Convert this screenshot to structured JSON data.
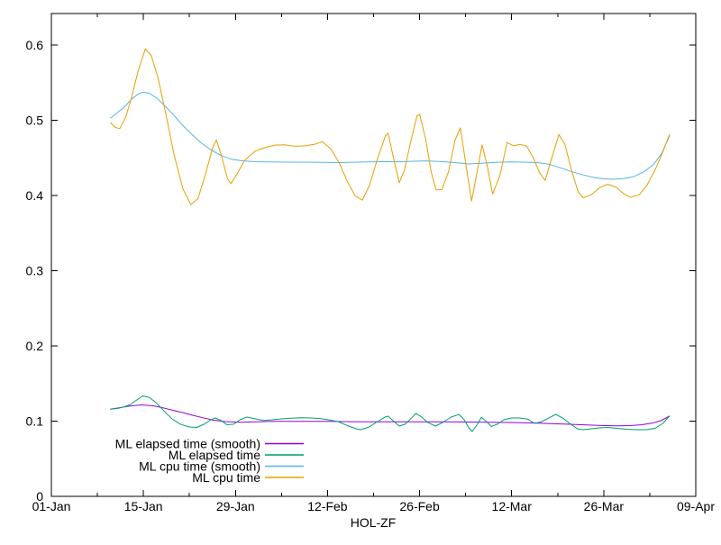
{
  "chart_data": {
    "type": "line",
    "title": "",
    "xlabel": "HOL-ZF",
    "ylabel": "",
    "x_unit": "days-since-01-Jan",
    "xlim": [
      0,
      98
    ],
    "ylim": [
      0,
      0.642
    ],
    "grid": false,
    "legend_position": "bottom-left-inside",
    "border_color": "#000000",
    "background_color": "#ffffff",
    "y_ticks": [
      {
        "v": 0,
        "label": "0"
      },
      {
        "v": 0.1,
        "label": "0.1"
      },
      {
        "v": 0.2,
        "label": "0.2"
      },
      {
        "v": 0.3,
        "label": "0.3"
      },
      {
        "v": 0.4,
        "label": "0.4"
      },
      {
        "v": 0.5,
        "label": "0.5"
      },
      {
        "v": 0.6,
        "label": "0.6"
      }
    ],
    "x_major_ticks": [
      {
        "day": 0,
        "label": "01-Jan"
      },
      {
        "day": 14,
        "label": "15-Jan"
      },
      {
        "day": 28,
        "label": "29-Jan"
      },
      {
        "day": 42,
        "label": "12-Feb"
      },
      {
        "day": 56,
        "label": "26-Feb"
      },
      {
        "day": 70,
        "label": "12-Mar"
      },
      {
        "day": 84,
        "label": "26-Mar"
      },
      {
        "day": 98,
        "label": "09-Apr"
      }
    ],
    "x_minor_ticks": [
      7,
      21,
      35,
      49,
      63,
      77,
      91
    ],
    "series": [
      {
        "name": "ML elapsed time (smooth)",
        "id": "ml-elapsed-time-smooth",
        "color": "#9400D3",
        "points": [
          [
            9,
            0.116
          ],
          [
            10.5,
            0.118
          ],
          [
            12,
            0.1202
          ],
          [
            13.7,
            0.1216
          ],
          [
            15.5,
            0.1204
          ],
          [
            17,
            0.1176
          ],
          [
            18.5,
            0.1144
          ],
          [
            20,
            0.1114
          ],
          [
            21.5,
            0.1078
          ],
          [
            23,
            0.1046
          ],
          [
            24.7,
            0.1012
          ],
          [
            26.5,
            0.0994
          ],
          [
            28.8,
            0.0984
          ],
          [
            31,
            0.099
          ],
          [
            34,
            0.0996
          ],
          [
            38,
            0.0998
          ],
          [
            42,
            0.0996
          ],
          [
            46,
            0.0993
          ],
          [
            50,
            0.0992
          ],
          [
            54,
            0.0992
          ],
          [
            58,
            0.0991
          ],
          [
            62,
            0.0989
          ],
          [
            66,
            0.0986
          ],
          [
            70,
            0.0982
          ],
          [
            73,
            0.0976
          ],
          [
            76,
            0.0968
          ],
          [
            79,
            0.0958
          ],
          [
            81.5,
            0.0949
          ],
          [
            84,
            0.094
          ],
          [
            86,
            0.0937
          ],
          [
            88,
            0.094
          ],
          [
            89.8,
            0.0952
          ],
          [
            91.3,
            0.0972
          ],
          [
            92.7,
            0.1006
          ],
          [
            94,
            0.1066
          ]
        ]
      },
      {
        "name": "ML elapsed time",
        "id": "ml-elapsed-time",
        "color": "#009E73",
        "points": [
          [
            9,
            0.1162
          ],
          [
            10,
            0.1168
          ],
          [
            11,
            0.1188
          ],
          [
            12,
            0.1222
          ],
          [
            13,
            0.1282
          ],
          [
            13.9,
            0.1336
          ],
          [
            14.9,
            0.1316
          ],
          [
            16,
            0.124
          ],
          [
            17.2,
            0.1128
          ],
          [
            18.4,
            0.1026
          ],
          [
            19.7,
            0.0956
          ],
          [
            21,
            0.0922
          ],
          [
            22.1,
            0.0916
          ],
          [
            23.2,
            0.0958
          ],
          [
            24.3,
            0.102
          ],
          [
            24.9,
            0.1042
          ],
          [
            25.8,
            0.101
          ],
          [
            26.7,
            0.0952
          ],
          [
            27.7,
            0.096
          ],
          [
            28.7,
            0.1018
          ],
          [
            29.7,
            0.1054
          ],
          [
            31,
            0.103
          ],
          [
            32.3,
            0.1008
          ],
          [
            33.6,
            0.1018
          ],
          [
            35,
            0.103
          ],
          [
            36.5,
            0.104
          ],
          [
            38,
            0.1044
          ],
          [
            39.5,
            0.1042
          ],
          [
            41,
            0.1034
          ],
          [
            42.3,
            0.1016
          ],
          [
            43.6,
            0.0994
          ],
          [
            45.2,
            0.0934
          ],
          [
            46.4,
            0.0898
          ],
          [
            47,
            0.0886
          ],
          [
            48.2,
            0.0918
          ],
          [
            49.6,
            0.0994
          ],
          [
            50.8,
            0.1056
          ],
          [
            51.2,
            0.1066
          ],
          [
            52,
            0.1004
          ],
          [
            52.9,
            0.0934
          ],
          [
            53.8,
            0.096
          ],
          [
            54.8,
            0.1044
          ],
          [
            55.4,
            0.1102
          ],
          [
            56.2,
            0.1064
          ],
          [
            57.3,
            0.098
          ],
          [
            58.4,
            0.0934
          ],
          [
            59.5,
            0.0982
          ],
          [
            60.8,
            0.1054
          ],
          [
            62,
            0.109
          ],
          [
            62.8,
            0.1016
          ],
          [
            63.5,
            0.091
          ],
          [
            64,
            0.0862
          ],
          [
            64.7,
            0.0946
          ],
          [
            65.4,
            0.105
          ],
          [
            66.2,
            0.0992
          ],
          [
            66.9,
            0.093
          ],
          [
            67.8,
            0.0958
          ],
          [
            68.8,
            0.1018
          ],
          [
            70,
            0.1042
          ],
          [
            71.2,
            0.1042
          ],
          [
            72.4,
            0.1028
          ],
          [
            73.5,
            0.097
          ],
          [
            74.6,
            0.0994
          ],
          [
            75.7,
            0.1044
          ],
          [
            76.7,
            0.109
          ],
          [
            77.8,
            0.104
          ],
          [
            79,
            0.0958
          ],
          [
            80,
            0.0898
          ],
          [
            80.9,
            0.0886
          ],
          [
            82.1,
            0.0898
          ],
          [
            83.3,
            0.091
          ],
          [
            84.6,
            0.0916
          ],
          [
            86,
            0.0904
          ],
          [
            87.5,
            0.0892
          ],
          [
            89,
            0.0886
          ],
          [
            90.5,
            0.0886
          ],
          [
            91.8,
            0.0904
          ],
          [
            93,
            0.097
          ],
          [
            94,
            0.1066
          ]
        ]
      },
      {
        "name": "ML cpu time (smooth)",
        "id": "ml-cpu-time-smooth",
        "color": "#56B4E9",
        "points": [
          [
            9,
            0.503
          ],
          [
            9.9,
            0.509
          ],
          [
            11,
            0.517
          ],
          [
            12.2,
            0.528
          ],
          [
            13.2,
            0.535
          ],
          [
            13.9,
            0.5375
          ],
          [
            14.9,
            0.536
          ],
          [
            16.1,
            0.529
          ],
          [
            17.4,
            0.518
          ],
          [
            18.7,
            0.506
          ],
          [
            20,
            0.493
          ],
          [
            21.4,
            0.481
          ],
          [
            22.9,
            0.469
          ],
          [
            24.4,
            0.46
          ],
          [
            25.9,
            0.453
          ],
          [
            27.4,
            0.4482
          ],
          [
            29,
            0.4462
          ],
          [
            31,
            0.445
          ],
          [
            33,
            0.4446
          ],
          [
            36,
            0.4444
          ],
          [
            40,
            0.4442
          ],
          [
            44,
            0.4438
          ],
          [
            48,
            0.4446
          ],
          [
            51,
            0.4451
          ],
          [
            53,
            0.4448
          ],
          [
            55,
            0.4456
          ],
          [
            57,
            0.446
          ],
          [
            59,
            0.4452
          ],
          [
            61,
            0.444
          ],
          [
            63.5,
            0.442
          ],
          [
            66,
            0.4432
          ],
          [
            68,
            0.4442
          ],
          [
            70,
            0.4446
          ],
          [
            72,
            0.4444
          ],
          [
            74,
            0.4438
          ],
          [
            75.5,
            0.4418
          ],
          [
            77.2,
            0.4376
          ],
          [
            79,
            0.432
          ],
          [
            80.9,
            0.4274
          ],
          [
            82.5,
            0.424
          ],
          [
            84,
            0.4222
          ],
          [
            85.5,
            0.4216
          ],
          [
            87,
            0.4224
          ],
          [
            88.5,
            0.425
          ],
          [
            90,
            0.431
          ],
          [
            91.5,
            0.4405
          ],
          [
            92.8,
            0.4555
          ],
          [
            94,
            0.479
          ]
        ]
      },
      {
        "name": "ML cpu time",
        "id": "ml-cpu-time",
        "color": "#E69F00",
        "points": [
          [
            9,
            0.497
          ],
          [
            9.7,
            0.4905
          ],
          [
            10.4,
            0.489
          ],
          [
            11.3,
            0.504
          ],
          [
            12.2,
            0.53
          ],
          [
            13.2,
            0.566
          ],
          [
            14.3,
            0.595
          ],
          [
            15.2,
            0.586
          ],
          [
            16.2,
            0.557
          ],
          [
            17.4,
            0.509
          ],
          [
            18.7,
            0.453
          ],
          [
            20,
            0.409
          ],
          [
            21.2,
            0.388
          ],
          [
            22.3,
            0.396
          ],
          [
            23.4,
            0.427
          ],
          [
            24.5,
            0.463
          ],
          [
            25.1,
            0.474
          ],
          [
            25.9,
            0.452
          ],
          [
            26.8,
            0.422
          ],
          [
            27.3,
            0.416
          ],
          [
            28.2,
            0.428
          ],
          [
            29.4,
            0.447
          ],
          [
            31,
            0.459
          ],
          [
            32.5,
            0.464
          ],
          [
            34,
            0.467
          ],
          [
            35.5,
            0.4675
          ],
          [
            37,
            0.4655
          ],
          [
            38.5,
            0.466
          ],
          [
            40,
            0.468
          ],
          [
            41.2,
            0.4715
          ],
          [
            42.5,
            0.462
          ],
          [
            43.8,
            0.443
          ],
          [
            45,
            0.419
          ],
          [
            46.2,
            0.3995
          ],
          [
            47.3,
            0.394
          ],
          [
            48.4,
            0.414
          ],
          [
            49.6,
            0.449
          ],
          [
            50.8,
            0.479
          ],
          [
            51.2,
            0.483
          ],
          [
            52,
            0.451
          ],
          [
            52.9,
            0.417
          ],
          [
            53.7,
            0.434
          ],
          [
            54.6,
            0.47
          ],
          [
            55.6,
            0.506
          ],
          [
            56,
            0.508
          ],
          [
            56.9,
            0.476
          ],
          [
            57.8,
            0.43
          ],
          [
            58.5,
            0.4075
          ],
          [
            59.4,
            0.408
          ],
          [
            60.4,
            0.432
          ],
          [
            61.4,
            0.474
          ],
          [
            62.2,
            0.49
          ],
          [
            63,
            0.444
          ],
          [
            63.9,
            0.3925
          ],
          [
            64.7,
            0.429
          ],
          [
            65.5,
            0.4675
          ],
          [
            66.3,
            0.439
          ],
          [
            67.1,
            0.402
          ],
          [
            68.2,
            0.426
          ],
          [
            69.3,
            0.4705
          ],
          [
            70.3,
            0.466
          ],
          [
            71.3,
            0.468
          ],
          [
            72.3,
            0.4655
          ],
          [
            73.3,
            0.45
          ],
          [
            74.2,
            0.431
          ],
          [
            75.1,
            0.42
          ],
          [
            76.2,
            0.453
          ],
          [
            77.2,
            0.481
          ],
          [
            78.1,
            0.468
          ],
          [
            79.1,
            0.434
          ],
          [
            80.1,
            0.405
          ],
          [
            80.9,
            0.397
          ],
          [
            82.1,
            0.401
          ],
          [
            83.3,
            0.41
          ],
          [
            84.6,
            0.415
          ],
          [
            85.9,
            0.411
          ],
          [
            87.1,
            0.402
          ],
          [
            88.1,
            0.3975
          ],
          [
            89.4,
            0.401
          ],
          [
            90.6,
            0.414
          ],
          [
            91.8,
            0.434
          ],
          [
            93,
            0.458
          ],
          [
            94,
            0.481
          ]
        ]
      }
    ]
  }
}
